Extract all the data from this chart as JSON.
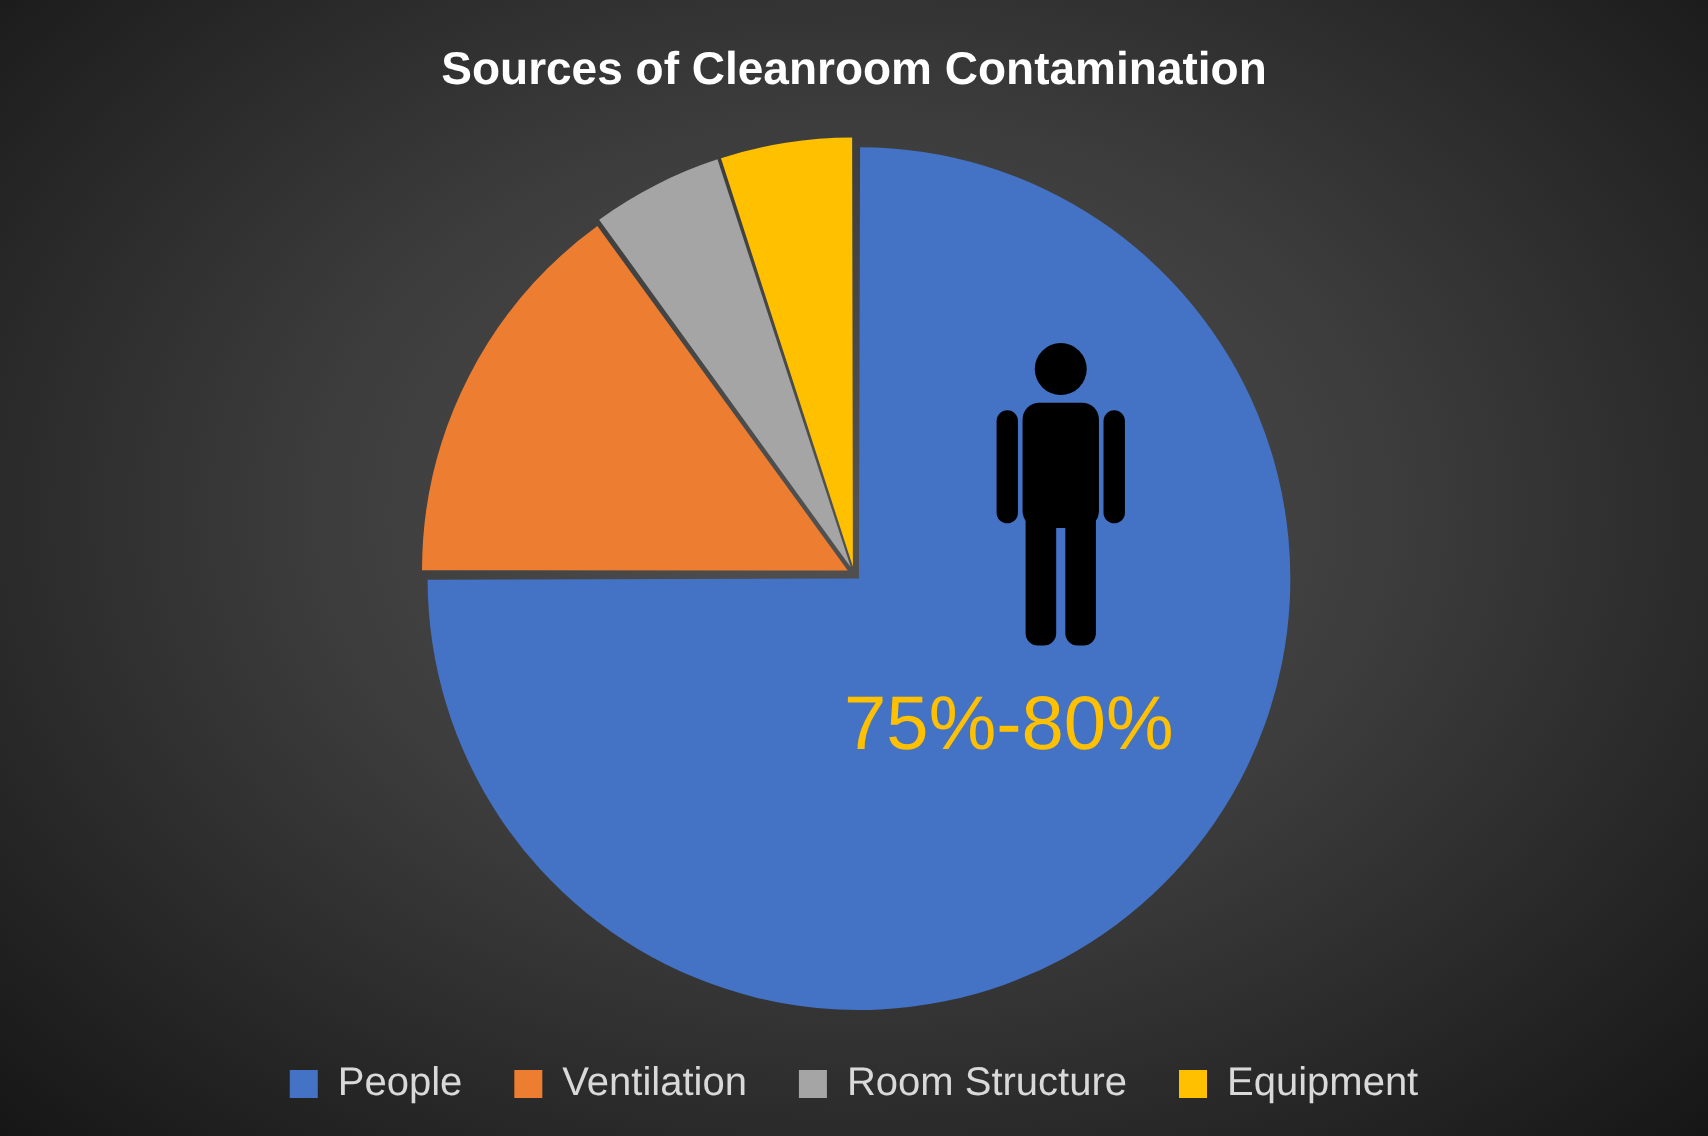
{
  "chart_data": {
    "type": "pie",
    "title": "Sources of Cleanroom Contamination",
    "categories": [
      "People",
      "Ventilation",
      "Room Structure",
      "Equipment"
    ],
    "values": [
      75,
      15,
      5,
      5
    ],
    "colors": [
      "#4472c4",
      "#ed7d31",
      "#a5a5a5",
      "#ffc000"
    ],
    "value_labels": [
      "75%-80%",
      null,
      null,
      null
    ],
    "legend": "bottom"
  }
}
